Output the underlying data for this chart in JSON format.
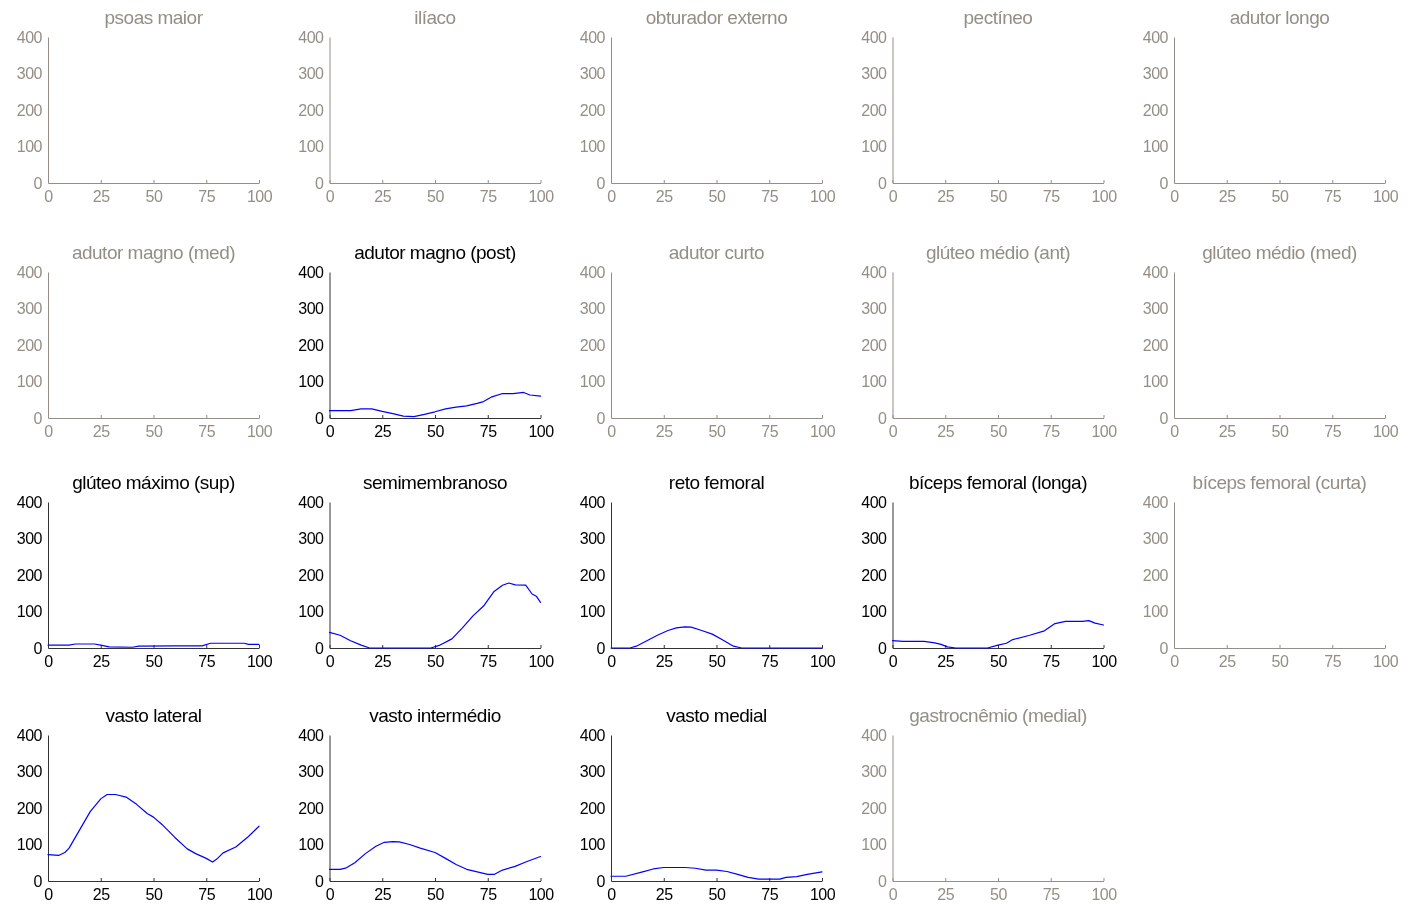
{
  "chart_data": [
    {
      "type": "line",
      "title": "psoas maior",
      "xlim": [
        0,
        100
      ],
      "xticks": [
        0,
        25,
        50,
        75,
        100
      ],
      "ylim": [
        0,
        400
      ],
      "yticks": [
        0,
        100,
        200,
        300,
        400
      ]
    },
    {
      "type": "line",
      "title": "ilíaco",
      "xlim": [
        0,
        100
      ],
      "xticks": [
        0,
        25,
        50,
        75,
        100
      ],
      "ylim": [
        0,
        400
      ],
      "yticks": [
        0,
        100,
        200,
        300,
        400
      ]
    },
    {
      "type": "line",
      "title": "obturador externo",
      "xlim": [
        0,
        100
      ],
      "xticks": [
        0,
        25,
        50,
        75,
        100
      ],
      "ylim": [
        0,
        400
      ],
      "yticks": [
        0,
        100,
        200,
        300,
        400
      ]
    },
    {
      "type": "line",
      "title": "pectíneo",
      "xlim": [
        0,
        100
      ],
      "xticks": [
        0,
        25,
        50,
        75,
        100
      ],
      "ylim": [
        0,
        400
      ],
      "yticks": [
        0,
        100,
        200,
        300,
        400
      ]
    },
    {
      "type": "line",
      "title": "adutor longo",
      "xlim": [
        0,
        100
      ],
      "xticks": [
        0,
        25,
        50,
        75,
        100
      ],
      "ylim": [
        0,
        400
      ],
      "yticks": [
        0,
        100,
        200,
        300,
        400
      ]
    },
    {
      "type": "line",
      "title": "adutor magno (med)",
      "xlim": [
        0,
        100
      ],
      "xticks": [
        0,
        25,
        50,
        75,
        100
      ],
      "ylim": [
        0,
        400
      ],
      "yticks": [
        0,
        100,
        200,
        300,
        400
      ]
    },
    {
      "type": "line",
      "title": "adutor magno (post)",
      "xlim": [
        0,
        100
      ],
      "xticks": [
        0,
        25,
        50,
        75,
        100
      ],
      "ylim": [
        0,
        400
      ],
      "yticks": [
        0,
        100,
        200,
        300,
        400
      ],
      "x": [
        0,
        5,
        10,
        15,
        20,
        25,
        30,
        35,
        40,
        45,
        50,
        55,
        60,
        65,
        70,
        73,
        77,
        82,
        87,
        92,
        95,
        100
      ],
      "series": [
        {
          "color": "#0000ff",
          "values": [
            20,
            20,
            20,
            25,
            25,
            18,
            12,
            5,
            4,
            10,
            17,
            25,
            30,
            33,
            40,
            45,
            58,
            67,
            67,
            70,
            63,
            60
          ]
        }
      ]
    },
    {
      "type": "line",
      "title": "adutor curto",
      "xlim": [
        0,
        100
      ],
      "xticks": [
        0,
        25,
        50,
        75,
        100
      ],
      "ylim": [
        0,
        400
      ],
      "yticks": [
        0,
        100,
        200,
        300,
        400
      ]
    },
    {
      "type": "line",
      "title": "glúteo médio (ant)",
      "xlim": [
        0,
        100
      ],
      "xticks": [
        0,
        25,
        50,
        75,
        100
      ],
      "ylim": [
        0,
        400
      ],
      "yticks": [
        0,
        100,
        200,
        300,
        400
      ]
    },
    {
      "type": "line",
      "title": "glúteo médio (med)",
      "xlim": [
        0,
        100
      ],
      "xticks": [
        0,
        25,
        50,
        75,
        100
      ],
      "ylim": [
        0,
        400
      ],
      "yticks": [
        0,
        100,
        200,
        300,
        400
      ]
    },
    {
      "type": "line",
      "title": "glúteo máximo (sup)",
      "xlim": [
        0,
        100
      ],
      "xticks": [
        0,
        25,
        50,
        75,
        100
      ],
      "ylim": [
        0,
        400
      ],
      "yticks": [
        0,
        100,
        200,
        300,
        400
      ],
      "x": [
        0,
        10,
        13,
        22,
        25,
        29,
        40,
        43,
        60,
        73,
        77,
        93,
        95,
        100
      ],
      "series": [
        {
          "color": "#0000ff",
          "values": [
            8,
            8,
            11,
            11,
            8,
            3,
            2,
            5,
            6,
            6,
            13,
            13,
            10,
            10
          ]
        }
      ]
    },
    {
      "type": "line",
      "title": "semimembranoso",
      "xlim": [
        0,
        100
      ],
      "xticks": [
        0,
        25,
        50,
        75,
        100
      ],
      "ylim": [
        0,
        400
      ],
      "yticks": [
        0,
        100,
        200,
        300,
        400
      ],
      "x": [
        0,
        5,
        10,
        15,
        19,
        25,
        45,
        48,
        52,
        58,
        63,
        68,
        73,
        78,
        82,
        85,
        88,
        93,
        96,
        98,
        100
      ],
      "series": [
        {
          "color": "#0000ff",
          "values": [
            43,
            35,
            20,
            8,
            0,
            0,
            0,
            0,
            7,
            25,
            55,
            88,
            115,
            155,
            172,
            178,
            173,
            172,
            148,
            142,
            125
          ]
        }
      ]
    },
    {
      "type": "line",
      "title": "reto femoral",
      "xlim": [
        0,
        100
      ],
      "xticks": [
        0,
        25,
        50,
        75,
        100
      ],
      "ylim": [
        0,
        400
      ],
      "yticks": [
        0,
        100,
        200,
        300,
        400
      ],
      "x": [
        0,
        9,
        12,
        17,
        22,
        27,
        31,
        35,
        38,
        43,
        48,
        53,
        58,
        62,
        100
      ],
      "series": [
        {
          "color": "#0000ff",
          "values": [
            0,
            0,
            5,
            20,
            35,
            48,
            55,
            58,
            57,
            48,
            38,
            22,
            5,
            0,
            0
          ]
        }
      ]
    },
    {
      "type": "line",
      "title": "bíceps femoral (longa)",
      "xlim": [
        0,
        100
      ],
      "xticks": [
        0,
        25,
        50,
        75,
        100
      ],
      "ylim": [
        0,
        400
      ],
      "yticks": [
        0,
        100,
        200,
        300,
        400
      ],
      "x": [
        0,
        5,
        15,
        20,
        23,
        26,
        30,
        45,
        50,
        54,
        57,
        65,
        72,
        77,
        82,
        90,
        93,
        96,
        100
      ],
      "series": [
        {
          "color": "#0000ff",
          "values": [
            20,
            18,
            18,
            14,
            10,
            3,
            0,
            0,
            8,
            13,
            23,
            35,
            47,
            67,
            73,
            73,
            75,
            68,
            63
          ]
        }
      ]
    },
    {
      "type": "line",
      "title": "bíceps femoral (curta)",
      "xlim": [
        0,
        100
      ],
      "xticks": [
        0,
        25,
        50,
        75,
        100
      ],
      "ylim": [
        0,
        400
      ],
      "yticks": [
        0,
        100,
        200,
        300,
        400
      ]
    },
    {
      "type": "line",
      "title": "vasto lateral",
      "xlim": [
        0,
        100
      ],
      "xticks": [
        0,
        25,
        50,
        75,
        100
      ],
      "ylim": [
        0,
        400
      ],
      "yticks": [
        0,
        100,
        200,
        300,
        400
      ],
      "x": [
        0,
        5,
        8,
        10,
        15,
        20,
        25,
        28,
        32,
        37,
        42,
        47,
        50,
        54,
        60,
        66,
        70,
        75,
        78,
        80,
        83,
        89,
        95,
        100
      ],
      "series": [
        {
          "color": "#0000ff",
          "values": [
            72,
            70,
            78,
            90,
            140,
            190,
            225,
            237,
            237,
            230,
            210,
            185,
            175,
            155,
            120,
            88,
            75,
            62,
            52,
            60,
            77,
            93,
            122,
            150
          ]
        }
      ]
    },
    {
      "type": "line",
      "title": "vasto intermédio",
      "xlim": [
        0,
        100
      ],
      "xticks": [
        0,
        25,
        50,
        75,
        100
      ],
      "ylim": [
        0,
        400
      ],
      "yticks": [
        0,
        100,
        200,
        300,
        400
      ],
      "x": [
        0,
        5,
        8,
        12,
        17,
        22,
        26,
        30,
        33,
        38,
        43,
        50,
        55,
        60,
        65,
        70,
        75,
        78,
        82,
        88,
        93,
        100
      ],
      "series": [
        {
          "color": "#0000ff",
          "values": [
            32,
            32,
            36,
            50,
            75,
            95,
            106,
            108,
            107,
            100,
            90,
            78,
            62,
            45,
            32,
            25,
            18,
            18,
            30,
            40,
            52,
            67
          ]
        }
      ]
    },
    {
      "type": "line",
      "title": "vasto medial",
      "xlim": [
        0,
        100
      ],
      "xticks": [
        0,
        25,
        50,
        75,
        100
      ],
      "ylim": [
        0,
        400
      ],
      "yticks": [
        0,
        100,
        200,
        300,
        400
      ],
      "x": [
        0,
        7,
        15,
        20,
        25,
        35,
        40,
        45,
        50,
        55,
        60,
        65,
        70,
        80,
        83,
        88,
        93,
        100
      ],
      "series": [
        {
          "color": "#0000ff",
          "values": [
            13,
            13,
            25,
            33,
            37,
            37,
            35,
            30,
            30,
            26,
            18,
            10,
            5,
            5,
            10,
            12,
            18,
            25
          ]
        }
      ]
    },
    {
      "type": "line",
      "title": "gastrocnêmio (medial)",
      "xlim": [
        0,
        100
      ],
      "xticks": [
        0,
        25,
        50,
        75,
        100
      ],
      "ylim": [
        0,
        400
      ],
      "yticks": [
        0,
        100,
        200,
        300,
        400
      ]
    }
  ]
}
